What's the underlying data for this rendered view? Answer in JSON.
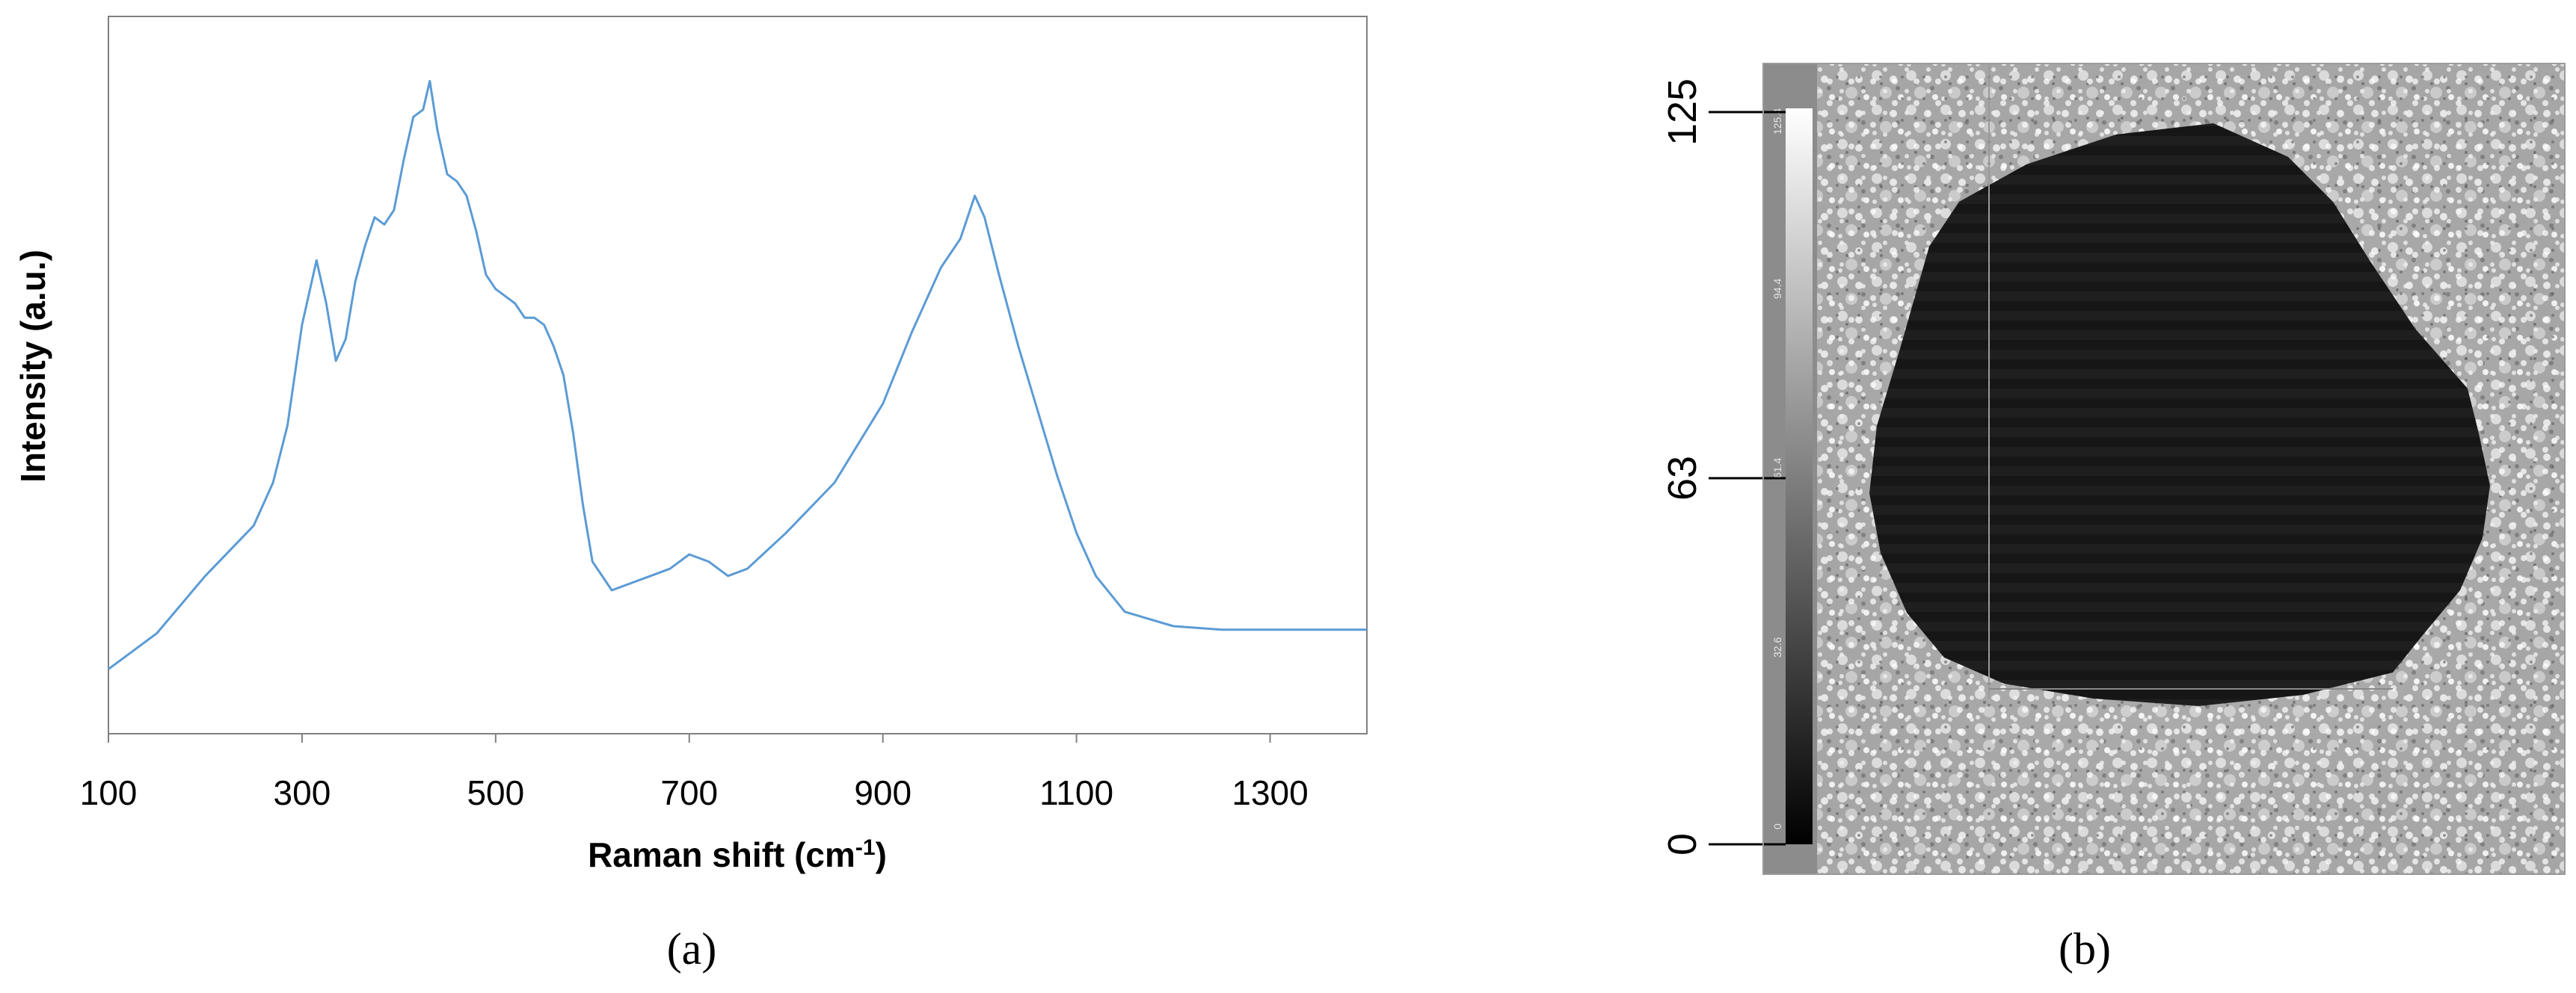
{
  "chart_data": [
    {
      "panel": "(a)",
      "type": "line",
      "xlabel": "Raman shift (cm",
      "xlabel_sup": "-1",
      "xlabel_end": ")",
      "ylabel": "Intensity (a.u.)",
      "xlim": [
        100,
        1400
      ],
      "ylim": [
        0,
        100
      ],
      "xticks": [
        "100",
        "300",
        "500",
        "700",
        "900",
        "1100",
        "1300"
      ],
      "y_tick_labels": "none",
      "grid": false,
      "legend": "none",
      "series": [
        {
          "color": "#5b9bd5",
          "x": [
            100,
            150,
            200,
            250,
            270,
            285,
            300,
            315,
            325,
            335,
            345,
            355,
            365,
            375,
            385,
            395,
            405,
            415,
            425,
            432,
            440,
            450,
            460,
            470,
            480,
            490,
            500,
            510,
            520,
            530,
            540,
            550,
            560,
            570,
            580,
            590,
            600,
            620,
            640,
            660,
            680,
            700,
            720,
            740,
            760,
            800,
            850,
            900,
            930,
            960,
            980,
            995,
            1005,
            1020,
            1040,
            1060,
            1080,
            1100,
            1120,
            1150,
            1200,
            1250,
            1300,
            1350,
            1400
          ],
          "y": [
            9,
            14,
            22,
            29,
            35,
            43,
            57,
            66,
            60,
            52,
            55,
            63,
            68,
            72,
            71,
            73,
            80,
            86,
            87,
            91,
            84,
            78,
            77,
            75,
            70,
            64,
            62,
            61,
            60,
            58,
            58,
            57,
            54,
            50,
            42,
            32,
            24,
            20,
            21,
            22,
            23,
            25,
            24,
            22,
            23,
            28,
            35,
            46,
            56,
            65,
            69,
            75,
            72,
            64,
            54,
            45,
            36,
            28,
            22,
            17,
            15,
            14.5,
            14.5,
            14.5,
            14.5
          ]
        }
      ]
    },
    {
      "panel": "(b)",
      "type": "heatmap",
      "colorbar_ticks": [
        "125",
        "63",
        "0"
      ],
      "colorscale": "grayscale"
    }
  ]
}
